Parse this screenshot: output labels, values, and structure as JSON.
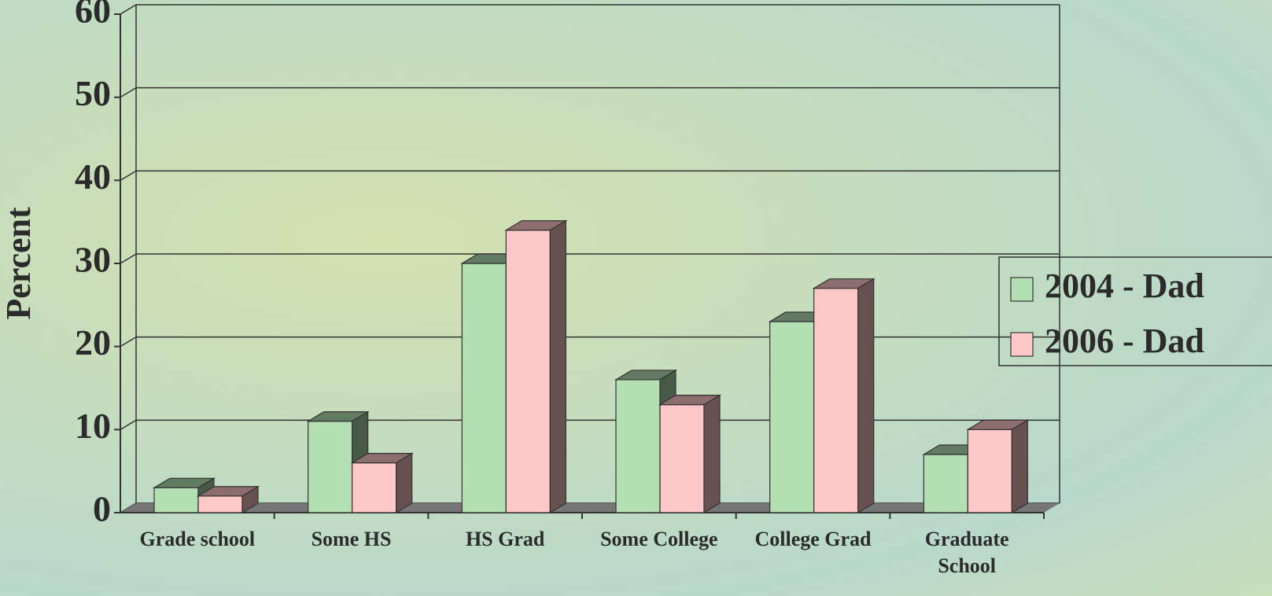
{
  "chart_data": {
    "type": "bar3d",
    "y_label": "Percent",
    "categories": [
      "Grade school",
      "Some HS",
      "HS Grad",
      "Some College",
      "College Grad",
      "Graduate School"
    ],
    "series": [
      {
        "name": "2004 - Dad",
        "color": "#b3dfb3",
        "values": [
          3,
          11,
          30,
          16,
          23,
          7
        ]
      },
      {
        "name": "2006 - Dad",
        "color": "#ffc8c8",
        "values": [
          2,
          6,
          34,
          13,
          27,
          10
        ]
      }
    ],
    "ylim": [
      0,
      60
    ],
    "yticks": [
      0,
      10,
      20,
      30,
      40,
      50,
      60
    ],
    "grid": true,
    "legend": "right"
  }
}
